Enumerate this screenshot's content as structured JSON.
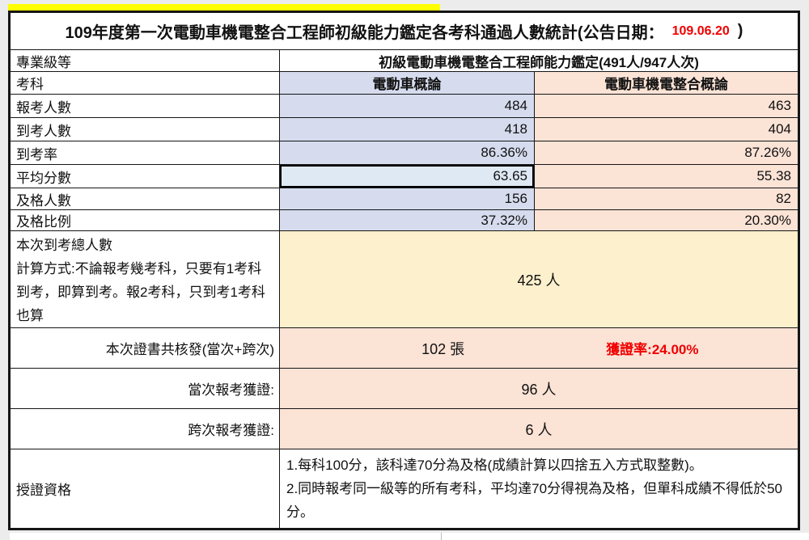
{
  "colors": {
    "page_bg": "#ececec",
    "highlight_yellow": "#ffff00",
    "lavender": "#d6dcee",
    "selected_blue": "#dfe9f3",
    "peach": "#fbe3d6",
    "pale_yellow": "#fdf0cd",
    "accent_red": "#f00000",
    "line_dark": "#151515"
  },
  "title": {
    "prefix": "109年度第一次電動車機電整合工程師初級能力鑑定各考科通過人數統計(公告日期：",
    "date": "109.06.20",
    "suffix": ")"
  },
  "level_row": {
    "label": "專業級等",
    "value": "初級電動車機電整合工程師能力鑑定(491人/947人次)"
  },
  "subject_row": {
    "label": "考科",
    "col1": "電動車概論",
    "col2": "電動車機電整合概論"
  },
  "stat_rows": [
    {
      "label": "報考人數",
      "col1": "484",
      "col2": "463"
    },
    {
      "label": "到考人數",
      "col1": "418",
      "col2": "404"
    },
    {
      "label": "到考率",
      "col1": "86.36%",
      "col2": "87.26%"
    },
    {
      "label": "平均分數",
      "col1": "63.65",
      "col2": "55.38"
    },
    {
      "label": "及格人數",
      "col1": "156",
      "col2": "82"
    },
    {
      "label": "及格比例",
      "col1": "37.32%",
      "col2": "20.30%"
    }
  ],
  "attendance": {
    "label_line1": "本次到考總人數",
    "label_line2": "計算方式:不論報考幾考科，只要有1考科到考，即算到考。報2考科，只到考1考科也算",
    "value": "425 人"
  },
  "certificates": {
    "label": "本次證書共核發(當次+跨次)",
    "value": "102 張",
    "rate": "獲證率:24.00%"
  },
  "current_session": {
    "label": "當次報考獲證:",
    "value": "96 人"
  },
  "cross_session": {
    "label": "跨次報考獲證:",
    "value": "6 人"
  },
  "qualification": {
    "label": "授證資格",
    "line1": "1.每科100分，該科達70分為及格(成績計算以四捨五入方式取整數)。",
    "line2": "2.同時報考同一級等的所有考科，平均達70分得視為及格，但單科成績不得低於50分。"
  }
}
